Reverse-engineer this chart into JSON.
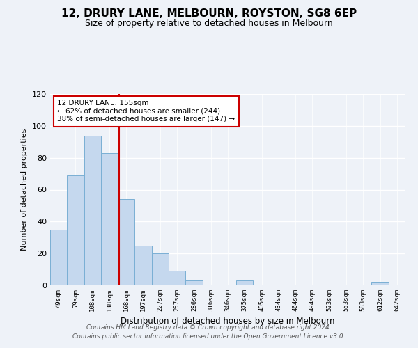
{
  "title": "12, DRURY LANE, MELBOURN, ROYSTON, SG8 6EP",
  "subtitle": "Size of property relative to detached houses in Melbourn",
  "xlabel": "Distribution of detached houses by size in Melbourn",
  "ylabel": "Number of detached properties",
  "bar_color": "#c5d8ee",
  "bar_edge_color": "#7aafd4",
  "categories": [
    "49sqm",
    "79sqm",
    "108sqm",
    "138sqm",
    "168sqm",
    "197sqm",
    "227sqm",
    "257sqm",
    "286sqm",
    "316sqm",
    "346sqm",
    "375sqm",
    "405sqm",
    "434sqm",
    "464sqm",
    "494sqm",
    "523sqm",
    "553sqm",
    "583sqm",
    "612sqm",
    "642sqm"
  ],
  "values": [
    35,
    69,
    94,
    83,
    54,
    25,
    20,
    9,
    3,
    0,
    0,
    3,
    0,
    0,
    0,
    0,
    0,
    0,
    0,
    2,
    0
  ],
  "ylim": [
    0,
    120
  ],
  "yticks": [
    0,
    20,
    40,
    60,
    80,
    100,
    120
  ],
  "annotation_title": "12 DRURY LANE: 155sqm",
  "annotation_line1": "← 62% of detached houses are smaller (244)",
  "annotation_line2": "38% of semi-detached houses are larger (147) →",
  "annotation_box_color": "#ffffff",
  "annotation_border_color": "#cc0000",
  "property_line_color": "#cc0000",
  "footer_line1": "Contains HM Land Registry data © Crown copyright and database right 2024.",
  "footer_line2": "Contains public sector information licensed under the Open Government Licence v3.0.",
  "background_color": "#eef2f8"
}
